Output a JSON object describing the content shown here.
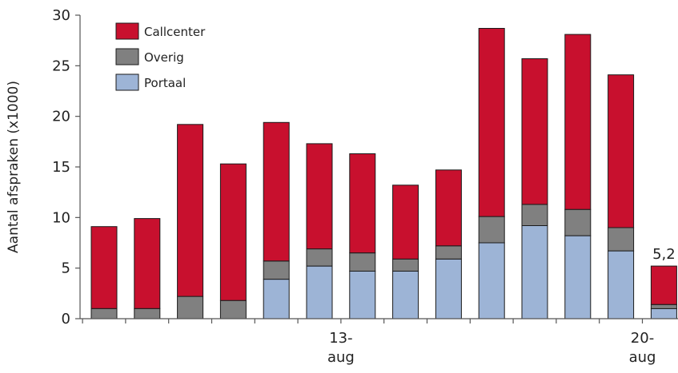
{
  "chart_data": {
    "type": "bar",
    "stacked": true,
    "ylabel": "Aantal afspraken (x1000)",
    "ylim": [
      0,
      30
    ],
    "yticks": [
      0,
      5,
      10,
      15,
      20,
      25,
      30
    ],
    "grid": false,
    "legend_position": "top-left",
    "x_labels": [
      {
        "index": 6,
        "lines": [
          "13-",
          "aug"
        ]
      },
      {
        "index": 13,
        "lines": [
          "20-",
          "aug"
        ]
      }
    ],
    "series": [
      {
        "name": "Portaal",
        "color": "#9db4d6",
        "values": [
          0,
          0,
          0,
          0,
          3.9,
          5.2,
          4.7,
          4.7,
          5.9,
          7.5,
          9.2,
          8.2,
          6.7,
          1.0
        ]
      },
      {
        "name": "Overig",
        "color": "#808080",
        "values": [
          1.0,
          1.0,
          2.2,
          1.8,
          1.8,
          1.7,
          1.8,
          1.2,
          1.3,
          2.6,
          2.1,
          2.6,
          2.3,
          0.4
        ]
      },
      {
        "name": "Callcenter",
        "color": "#c8102e",
        "values": [
          8.1,
          8.9,
          17.0,
          13.5,
          13.7,
          10.4,
          9.8,
          7.3,
          7.5,
          18.6,
          14.4,
          17.3,
          15.1,
          3.8
        ]
      }
    ],
    "legend_order": [
      "Callcenter",
      "Overig",
      "Portaal"
    ],
    "annotations": [
      {
        "index": 13,
        "text": "5,2"
      }
    ]
  }
}
